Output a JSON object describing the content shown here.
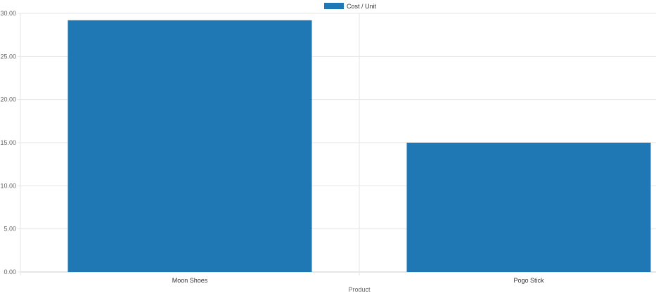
{
  "chart_data": {
    "type": "bar",
    "categories": [
      "Moon Shoes",
      "Pogo Stick"
    ],
    "series": [
      {
        "name": "Cost / Unit",
        "values": [
          29.2,
          15.0
        ],
        "color": "#1f77b4"
      }
    ],
    "xlabel": "Product",
    "ylabel": "",
    "ylim": [
      0,
      30
    ],
    "yticks": [
      "0.00",
      "5.00",
      "10.00",
      "15.00",
      "20.00",
      "25.00",
      "30.00"
    ],
    "grid": true,
    "legend": "top-center"
  }
}
